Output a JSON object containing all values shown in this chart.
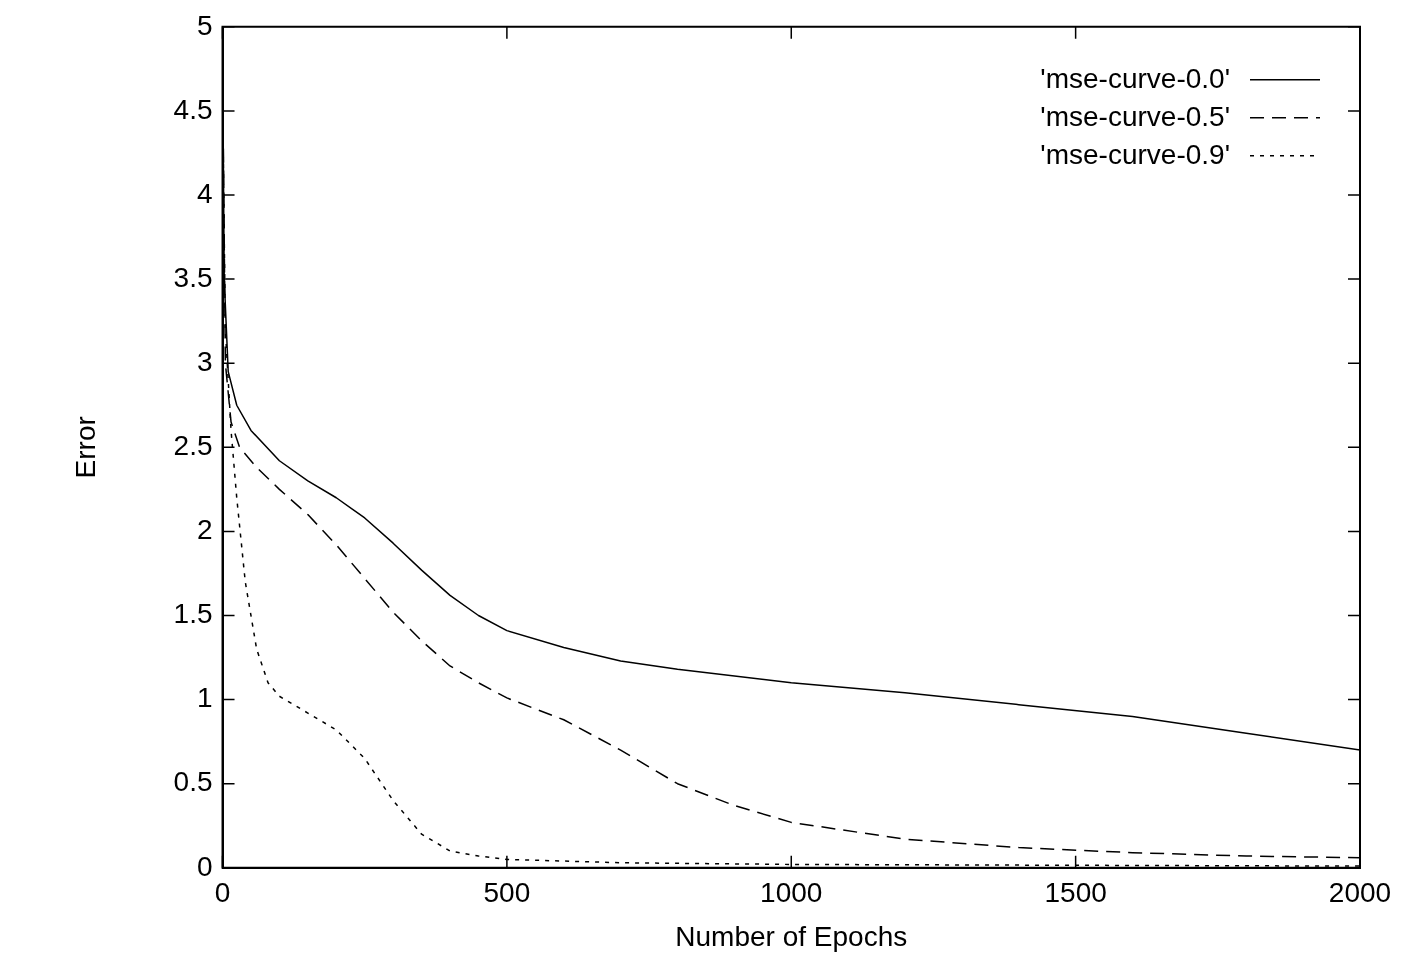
{
  "chart_data": {
    "type": "line",
    "xlabel": "Number of Epochs",
    "ylabel": "Error",
    "xlim": [
      0,
      2000
    ],
    "xticks": [
      0,
      500,
      1000,
      1500,
      2000
    ],
    "ylim": [
      0,
      5
    ],
    "yticks": [
      0,
      0.5,
      1,
      1.5,
      2,
      2.5,
      3,
      3.5,
      4,
      4.5,
      5
    ],
    "grid": false,
    "legend": "top right",
    "marker": "none",
    "series": [
      {
        "name": "'mse-curve-0.0'",
        "color": "#000000",
        "line_style": "solid",
        "x": [
          0,
          3,
          10,
          25,
          50,
          100,
          150,
          200,
          250,
          300,
          350,
          400,
          450,
          500,
          600,
          700,
          800,
          1000,
          1200,
          1400,
          1600,
          1800,
          2000
        ],
        "values": [
          4.9,
          3.5,
          2.95,
          2.75,
          2.6,
          2.42,
          2.3,
          2.2,
          2.08,
          1.93,
          1.77,
          1.62,
          1.5,
          1.41,
          1.31,
          1.23,
          1.18,
          1.1,
          1.04,
          0.97,
          0.9,
          0.8,
          0.7
        ]
      },
      {
        "name": "'mse-curve-0.5'",
        "color": "#000000",
        "line_style": "dashed",
        "x": [
          0,
          5,
          15,
          30,
          60,
          100,
          150,
          200,
          250,
          300,
          350,
          400,
          450,
          500,
          600,
          700,
          800,
          900,
          1000,
          1200,
          1400,
          1600,
          1800,
          2000
        ],
        "values": [
          4.8,
          3.0,
          2.65,
          2.5,
          2.38,
          2.25,
          2.1,
          1.92,
          1.72,
          1.52,
          1.35,
          1.2,
          1.1,
          1.01,
          0.88,
          0.7,
          0.5,
          0.37,
          0.27,
          0.17,
          0.12,
          0.09,
          0.07,
          0.06
        ]
      },
      {
        "name": "'mse-curve-0.9'",
        "color": "#000000",
        "line_style": "dotted",
        "x": [
          0,
          5,
          15,
          25,
          40,
          60,
          80,
          100,
          150,
          200,
          250,
          300,
          350,
          400,
          450,
          500,
          700,
          1000,
          1500,
          2000
        ],
        "values": [
          4.6,
          3.2,
          2.6,
          2.2,
          1.7,
          1.3,
          1.1,
          1.02,
          0.92,
          0.82,
          0.65,
          0.4,
          0.2,
          0.1,
          0.07,
          0.05,
          0.03,
          0.02,
          0.015,
          0.01
        ]
      }
    ]
  }
}
